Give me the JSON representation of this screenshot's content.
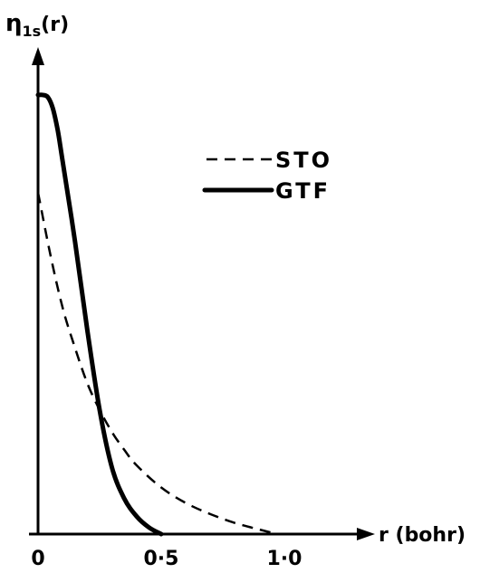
{
  "chart_data": {
    "type": "line",
    "ylabel_main": "η",
    "ylabel_sub": "1s",
    "ylabel_arg": "(r)",
    "xlabel": "r (bohr)",
    "xticks": [
      "0",
      "0·5",
      "1·0"
    ],
    "xlim": [
      0,
      1.3
    ],
    "ylim": [
      0,
      1.0
    ],
    "series": [
      {
        "name": "STO",
        "style": "dashed",
        "x": [
          0,
          0.05,
          0.1,
          0.15,
          0.2,
          0.25,
          0.3,
          0.35,
          0.4,
          0.5,
          0.6,
          0.7,
          0.8,
          0.9,
          0.97
        ],
        "y": [
          0.77,
          0.63,
          0.51,
          0.42,
          0.34,
          0.28,
          0.23,
          0.19,
          0.155,
          0.105,
          0.07,
          0.045,
          0.025,
          0.01,
          0.0
        ]
      },
      {
        "name": "GTF",
        "style": "solid",
        "x": [
          0,
          0.02,
          0.04,
          0.06,
          0.08,
          0.1,
          0.15,
          0.2,
          0.25,
          0.3,
          0.35,
          0.4,
          0.45,
          0.5
        ],
        "y": [
          0.99,
          0.99,
          0.985,
          0.96,
          0.91,
          0.84,
          0.66,
          0.46,
          0.28,
          0.15,
          0.08,
          0.04,
          0.015,
          0.0
        ]
      }
    ]
  }
}
